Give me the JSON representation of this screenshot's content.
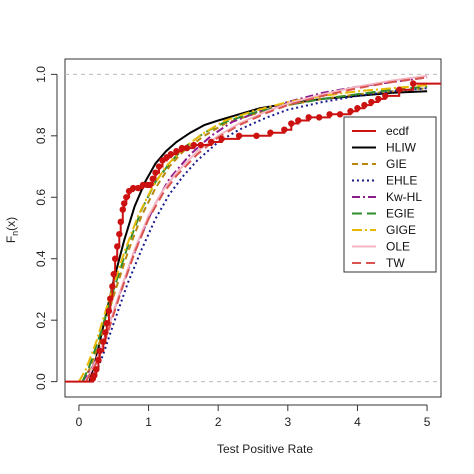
{
  "chart_data": {
    "type": "line",
    "xlabel": "Test Positive Rate",
    "ylabel": "F",
    "ylabel_sub": "n",
    "ylabel_suffix": "(x)",
    "xlim": [
      -0.2,
      5.2
    ],
    "ylim": [
      -0.05,
      1.05
    ],
    "xticks": [
      0,
      1,
      2,
      3,
      4,
      5
    ],
    "yticks": [
      0.0,
      0.2,
      0.4,
      0.6,
      0.8,
      1.0
    ],
    "xtick_labels": [
      "0",
      "1",
      "2",
      "3",
      "4",
      "5"
    ],
    "ytick_labels": [
      "0.0",
      "0.2",
      "0.4",
      "0.6",
      "0.8",
      "1.0"
    ],
    "reference_lines_y": [
      0,
      1
    ],
    "grid": false,
    "legend": "top-right",
    "ecdf": {
      "name": "ecdf",
      "color": "#cc1111",
      "x": [
        0.2,
        0.22,
        0.25,
        0.28,
        0.3,
        0.35,
        0.38,
        0.4,
        0.43,
        0.45,
        0.48,
        0.5,
        0.52,
        0.55,
        0.58,
        0.6,
        0.63,
        0.65,
        0.68,
        0.72,
        0.78,
        0.85,
        0.92,
        0.98,
        1.02,
        1.06,
        1.1,
        1.15,
        1.2,
        1.26,
        1.32,
        1.4,
        1.48,
        1.55,
        1.65,
        1.75,
        1.9,
        2.05,
        2.3,
        2.55,
        2.75,
        2.95,
        3.05,
        3.15,
        3.3,
        3.45,
        3.6,
        3.75,
        3.9,
        4.0,
        4.1,
        4.2,
        4.3,
        4.4,
        4.6,
        4.8
      ],
      "y": [
        0.01,
        0.02,
        0.04,
        0.07,
        0.1,
        0.13,
        0.16,
        0.19,
        0.23,
        0.27,
        0.31,
        0.35,
        0.4,
        0.44,
        0.48,
        0.52,
        0.56,
        0.58,
        0.6,
        0.62,
        0.63,
        0.63,
        0.64,
        0.64,
        0.64,
        0.66,
        0.68,
        0.7,
        0.72,
        0.73,
        0.74,
        0.75,
        0.76,
        0.76,
        0.77,
        0.77,
        0.78,
        0.79,
        0.8,
        0.8,
        0.81,
        0.82,
        0.84,
        0.85,
        0.86,
        0.86,
        0.87,
        0.87,
        0.88,
        0.89,
        0.9,
        0.91,
        0.92,
        0.93,
        0.95,
        0.97
      ]
    },
    "series": [
      {
        "name": "HLIW",
        "color": "#000000",
        "dash": "",
        "width": 2.0,
        "x": [
          0.15,
          0.25,
          0.35,
          0.5,
          0.65,
          0.8,
          0.95,
          1.1,
          1.25,
          1.4,
          1.6,
          1.8,
          2.0,
          2.3,
          2.6,
          3.0,
          3.5,
          4.0,
          4.5,
          5.0
        ],
        "y": [
          0.0,
          0.08,
          0.18,
          0.33,
          0.46,
          0.57,
          0.65,
          0.71,
          0.75,
          0.78,
          0.81,
          0.835,
          0.85,
          0.87,
          0.89,
          0.905,
          0.92,
          0.93,
          0.94,
          0.945
        ]
      },
      {
        "name": "GIE",
        "color": "#b8860b",
        "dash": "6,4",
        "width": 2.0,
        "x": [
          0.05,
          0.15,
          0.3,
          0.5,
          0.7,
          0.9,
          1.1,
          1.3,
          1.5,
          1.8,
          2.1,
          2.5,
          3.0,
          3.5,
          4.0,
          4.5,
          5.0
        ],
        "y": [
          0.0,
          0.04,
          0.13,
          0.28,
          0.42,
          0.54,
          0.63,
          0.7,
          0.75,
          0.8,
          0.84,
          0.87,
          0.9,
          0.92,
          0.935,
          0.945,
          0.955
        ]
      },
      {
        "name": "EHLE",
        "color": "#1a1a8c",
        "dash": "2,3",
        "width": 2.0,
        "x": [
          0.2,
          0.35,
          0.5,
          0.7,
          0.9,
          1.1,
          1.3,
          1.5,
          1.7,
          2.0,
          2.3,
          2.7,
          3.0,
          3.5,
          4.0,
          4.5,
          5.0
        ],
        "y": [
          0.0,
          0.09,
          0.19,
          0.32,
          0.43,
          0.53,
          0.61,
          0.67,
          0.72,
          0.78,
          0.82,
          0.86,
          0.885,
          0.91,
          0.93,
          0.945,
          0.955
        ]
      },
      {
        "name": "Kw-HL",
        "color": "#8b1a8b",
        "dash": "8,3,2,3",
        "width": 2.0,
        "x": [
          0.05,
          0.2,
          0.35,
          0.5,
          0.7,
          0.9,
          1.1,
          1.3,
          1.6,
          1.9,
          2.2,
          2.6,
          3.0,
          3.5,
          4.0,
          4.5,
          5.0
        ],
        "y": [
          0.0,
          0.05,
          0.13,
          0.23,
          0.36,
          0.48,
          0.58,
          0.66,
          0.74,
          0.8,
          0.845,
          0.88,
          0.91,
          0.94,
          0.96,
          0.975,
          0.99
        ]
      },
      {
        "name": "EGIE",
        "color": "#2e8b2e",
        "dash": "10,5",
        "width": 2.0,
        "x": [
          0.05,
          0.15,
          0.3,
          0.5,
          0.7,
          0.9,
          1.1,
          1.3,
          1.5,
          1.8,
          2.1,
          2.5,
          3.0,
          3.5,
          4.0,
          4.5,
          5.0
        ],
        "y": [
          0.0,
          0.05,
          0.15,
          0.3,
          0.44,
          0.56,
          0.65,
          0.71,
          0.76,
          0.81,
          0.845,
          0.875,
          0.9,
          0.92,
          0.935,
          0.95,
          0.96
        ]
      },
      {
        "name": "GIGE",
        "color": "#e6b800",
        "dash": "10,3,2,3",
        "width": 2.0,
        "x": [
          0.0,
          0.1,
          0.25,
          0.45,
          0.65,
          0.85,
          1.05,
          1.25,
          1.5,
          1.8,
          2.1,
          2.5,
          3.0,
          3.5,
          4.0,
          4.5,
          5.0
        ],
        "y": [
          0.0,
          0.04,
          0.13,
          0.28,
          0.42,
          0.54,
          0.63,
          0.7,
          0.76,
          0.81,
          0.85,
          0.88,
          0.91,
          0.93,
          0.945,
          0.955,
          0.965
        ]
      },
      {
        "name": "OLE",
        "color": "#f4b6c2",
        "dash": "",
        "width": 2.0,
        "x": [
          0.1,
          0.25,
          0.4,
          0.6,
          0.8,
          1.0,
          1.2,
          1.4,
          1.7,
          2.0,
          2.3,
          2.7,
          3.0,
          3.5,
          4.0,
          4.5,
          5.0
        ],
        "y": [
          0.0,
          0.07,
          0.16,
          0.3,
          0.43,
          0.54,
          0.62,
          0.68,
          0.75,
          0.8,
          0.84,
          0.88,
          0.905,
          0.935,
          0.96,
          0.98,
          0.995
        ]
      },
      {
        "name": "TW",
        "color": "#d9534f",
        "dash": "9,5",
        "width": 2.0,
        "x": [
          0.1,
          0.25,
          0.4,
          0.6,
          0.8,
          1.0,
          1.2,
          1.4,
          1.7,
          2.0,
          2.3,
          2.7,
          3.0,
          3.5,
          4.0,
          4.5,
          5.0
        ],
        "y": [
          0.0,
          0.06,
          0.15,
          0.29,
          0.42,
          0.53,
          0.61,
          0.67,
          0.74,
          0.795,
          0.835,
          0.875,
          0.9,
          0.93,
          0.955,
          0.975,
          0.99
        ]
      }
    ]
  }
}
